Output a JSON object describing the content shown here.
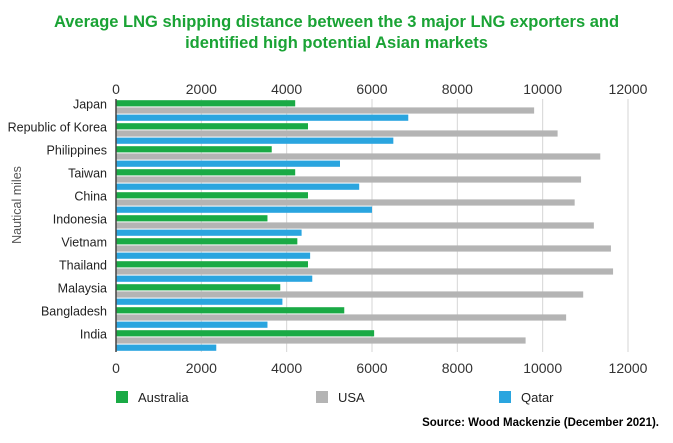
{
  "chart_data": {
    "type": "bar",
    "orientation": "horizontal",
    "title_line1": "Average LNG shipping distance between the 3 major LNG exporters and",
    "title_line2": "identified high potential Asian  markets",
    "ylabel": "Nautical miles",
    "xlim": [
      0,
      12000
    ],
    "xticks": [
      "0",
      "2000",
      "4000",
      "6000",
      "8000",
      "10000",
      "12000"
    ],
    "xtick_values": [
      0,
      2000,
      4000,
      6000,
      8000,
      10000,
      12000
    ],
    "grid": true,
    "legend_position": "bottom",
    "categories": [
      "Japan",
      "Republic of Korea",
      "Philippines",
      "Taiwan",
      "China",
      "Indonesia",
      "Vietnam",
      "Thailand",
      "Malaysia",
      "Bangladesh",
      "India"
    ],
    "series": [
      {
        "name": "Australia",
        "color": "#1aaa45",
        "values": [
          4200,
          4500,
          3650,
          4200,
          4500,
          3550,
          4250,
          4500,
          3850,
          5350,
          6050
        ]
      },
      {
        "name": "USA",
        "color": "#b4b4b4",
        "values": [
          9800,
          10350,
          11350,
          10900,
          10750,
          11200,
          11600,
          11650,
          10950,
          10550,
          9600
        ]
      },
      {
        "name": "Qatar",
        "color": "#2aa5df",
        "values": [
          6850,
          6500,
          5250,
          5700,
          6000,
          4350,
          4550,
          4600,
          3900,
          3550,
          2350
        ]
      }
    ]
  },
  "source": "Source: Wood Mackenzie (December 2021)."
}
